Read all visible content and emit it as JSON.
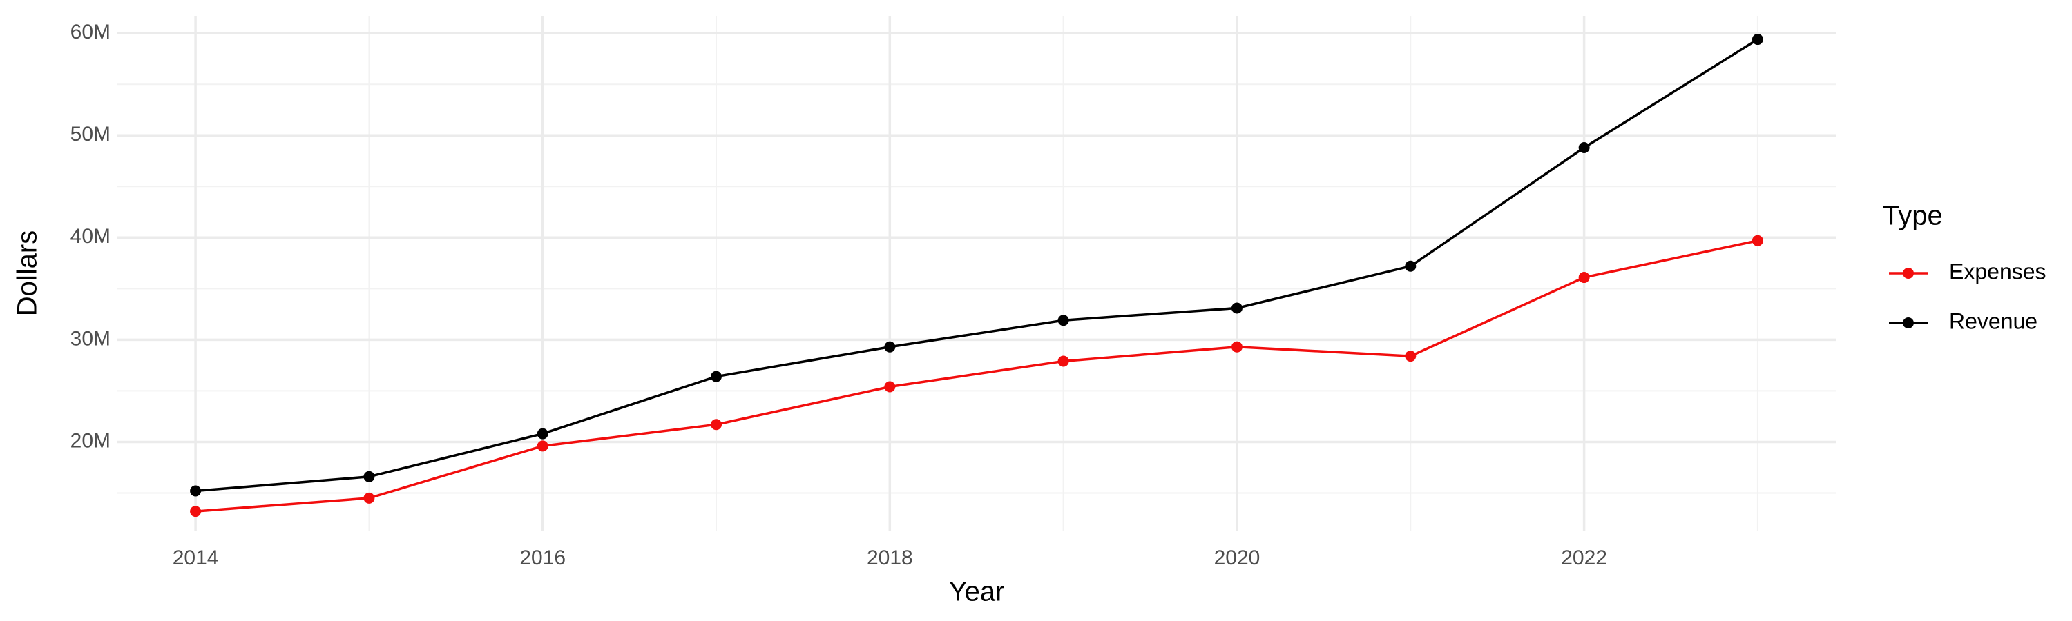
{
  "chart_data": {
    "type": "line",
    "x_label": "Year",
    "y_label": "Dollars",
    "legend_title": "Type",
    "legend_position": "right",
    "grid": true,
    "x": [
      2014,
      2015,
      2016,
      2017,
      2018,
      2019,
      2020,
      2021,
      2022,
      2023
    ],
    "series": [
      {
        "name": "Expenses",
        "color": "#f20d0d",
        "values": [
          13200000,
          14500000,
          19600000,
          21700000,
          25400000,
          27900000,
          29300000,
          28400000,
          36100000,
          39700000
        ]
      },
      {
        "name": "Revenue",
        "color": "#000000",
        "values": [
          15200000,
          16600000,
          20800000,
          26400000,
          29300000,
          31900000,
          33100000,
          37200000,
          48800000,
          59400000
        ]
      }
    ],
    "xlim": [
      2013.55,
      2023.45
    ],
    "xticks": [
      2014,
      2016,
      2018,
      2020,
      2022
    ],
    "ylim": [
      11250000,
      61700000
    ],
    "yticks": [
      {
        "value": 20000000,
        "label": "20M"
      },
      {
        "value": 30000000,
        "label": "30M"
      },
      {
        "value": 40000000,
        "label": "40M"
      },
      {
        "value": 50000000,
        "label": "50M"
      },
      {
        "value": 60000000,
        "label": "60M"
      }
    ]
  }
}
